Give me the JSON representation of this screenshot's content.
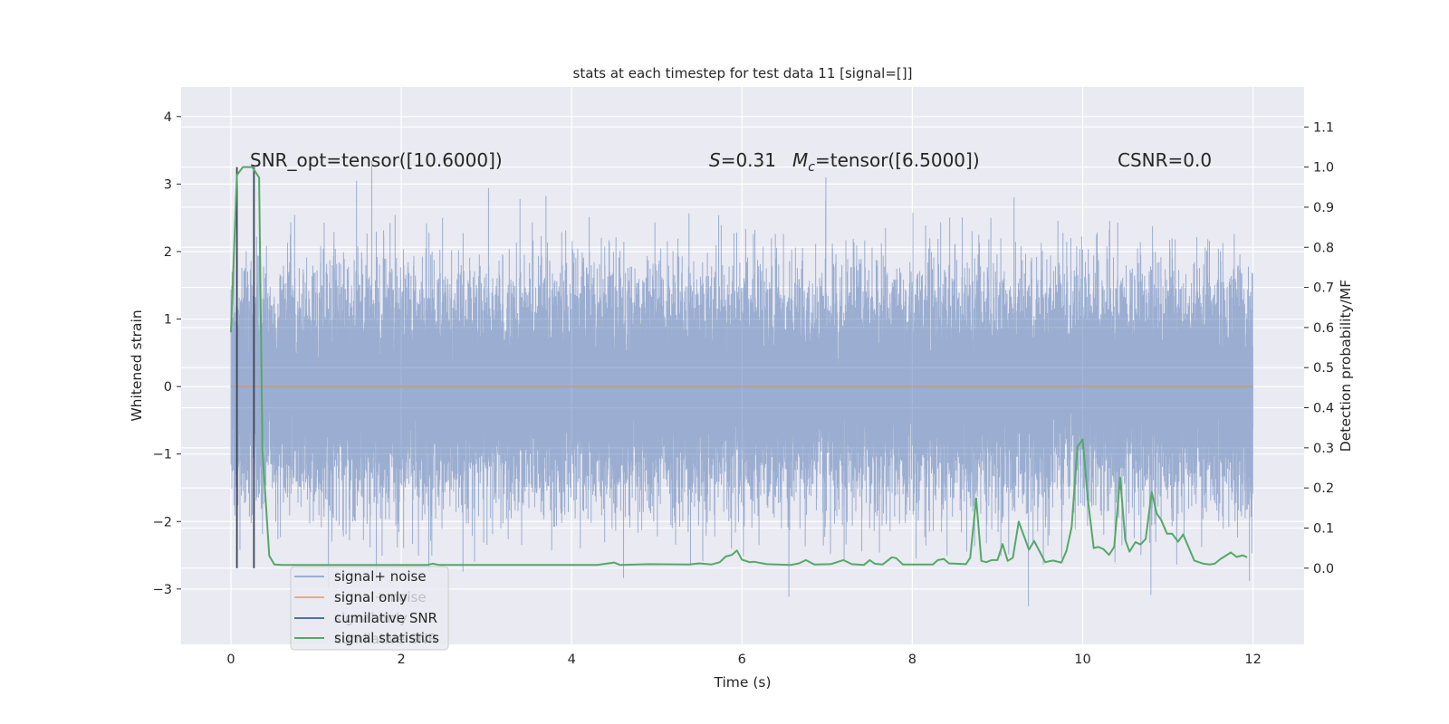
{
  "chart_data": {
    "type": "line",
    "title": "stats at each timestep for test data 11 [signal=[]]",
    "xlabel": "Time (s)",
    "ylabel": "Whitened strain",
    "ylabel_right": "Detection probability/MF",
    "xlim": [
      -0.585,
      12.6
    ],
    "ylim": [
      -3.82,
      4.44
    ],
    "ylim_right": [
      -0.19,
      1.2
    ],
    "xticks": [
      0,
      2,
      4,
      6,
      8,
      10,
      12
    ],
    "yticks": [
      -3,
      -2,
      -1,
      0,
      1,
      2,
      3,
      4
    ],
    "yticks_right": [
      0.0,
      0.1,
      0.2,
      0.3,
      0.4,
      0.5,
      0.6,
      0.7,
      0.8,
      0.9,
      1.0,
      1.1
    ],
    "grid": true,
    "legend_placement": "lower-left",
    "annotations": {
      "snr_opt": "SNR_opt=tensor([10.6000])",
      "s_symbol": "S",
      "s_value": "=0.31",
      "mc_symbol": "M",
      "mc_sub": "c",
      "mc_value": "=tensor([6.5000])",
      "csnr": "CSNR=0.0"
    },
    "series": [
      {
        "name": "signal+ noise",
        "axis": "left",
        "color": "#4c72b0",
        "alpha": 0.5,
        "generator": {
          "t_range": [
            0,
            12
          ],
          "n_samples": 24576,
          "std": 0.8,
          "seed": 11
        }
      },
      {
        "name": "signal only",
        "axis": "left",
        "color": "#dd8452",
        "alpha": 0.6,
        "x": [
          0,
          12
        ],
        "y": [
          0,
          0
        ]
      },
      {
        "name": "cumilative SNR",
        "axis": "right",
        "color": "#4c72b0",
        "vlines_color": "#3d4457",
        "vlines_x": [
          0.07,
          0.27
        ],
        "vlines_range": [
          0,
          1.0
        ]
      },
      {
        "name": "signal statistics",
        "axis": "right",
        "color": "#55a868",
        "x": [
          0.0,
          0.07,
          0.14,
          0.25,
          0.33,
          0.37,
          0.45,
          0.51,
          0.6,
          1.0,
          1.5,
          2.0,
          2.3,
          2.37,
          2.45,
          3.0,
          3.5,
          4.0,
          4.3,
          4.5,
          4.57,
          4.91,
          5.37,
          5.5,
          5.64,
          5.74,
          5.81,
          5.88,
          5.94,
          6.0,
          6.09,
          6.14,
          6.29,
          6.57,
          6.67,
          6.75,
          6.85,
          7.04,
          7.19,
          7.29,
          7.43,
          7.5,
          7.56,
          7.65,
          7.76,
          7.81,
          7.89,
          8.24,
          8.3,
          8.37,
          8.43,
          8.63,
          8.68,
          8.75,
          8.81,
          8.87,
          8.93,
          9.0,
          9.06,
          9.12,
          9.18,
          9.25,
          9.37,
          9.43,
          9.56,
          9.65,
          9.75,
          9.81,
          9.87,
          9.94,
          10.0,
          10.06,
          10.13,
          10.18,
          10.24,
          10.31,
          10.37,
          10.44,
          10.5,
          10.55,
          10.62,
          10.68,
          10.74,
          10.81,
          10.87,
          10.92,
          10.99,
          11.05,
          11.12,
          11.18,
          11.31,
          11.42,
          11.49,
          11.55,
          11.62,
          11.74,
          11.81,
          11.88,
          11.93
        ],
        "y": [
          0.588,
          0.98,
          1.0,
          1.0,
          0.974,
          0.294,
          0.031,
          0.009,
          0.008,
          0.008,
          0.008,
          0.008,
          0.008,
          0.011,
          0.008,
          0.008,
          0.008,
          0.008,
          0.008,
          0.014,
          0.008,
          0.01,
          0.009,
          0.012,
          0.009,
          0.015,
          0.029,
          0.033,
          0.044,
          0.021,
          0.015,
          0.016,
          0.01,
          0.008,
          0.012,
          0.02,
          0.009,
          0.01,
          0.02,
          0.01,
          0.008,
          0.02,
          0.011,
          0.009,
          0.027,
          0.025,
          0.009,
          0.009,
          0.02,
          0.023,
          0.012,
          0.01,
          0.026,
          0.174,
          0.018,
          0.015,
          0.02,
          0.02,
          0.06,
          0.018,
          0.026,
          0.116,
          0.046,
          0.068,
          0.015,
          0.019,
          0.014,
          0.043,
          0.102,
          0.303,
          0.321,
          0.174,
          0.05,
          0.053,
          0.048,
          0.033,
          0.053,
          0.226,
          0.071,
          0.041,
          0.065,
          0.059,
          0.073,
          0.19,
          0.136,
          0.121,
          0.086,
          0.086,
          0.066,
          0.084,
          0.019,
          0.011,
          0.009,
          0.011,
          0.023,
          0.039,
          0.028,
          0.032,
          0.027
        ]
      }
    ]
  },
  "legend": {
    "items": [
      "signal+ noise",
      "signal only",
      "cumilative SNR",
      "signal statistics"
    ],
    "colors": [
      "#9aaed2",
      "#e8ab8c",
      "#4c72b0",
      "#55a868"
    ]
  },
  "colors": {
    "axes_bg": "#eaeaf2",
    "grid": "#ffffff",
    "text": "#262626"
  }
}
